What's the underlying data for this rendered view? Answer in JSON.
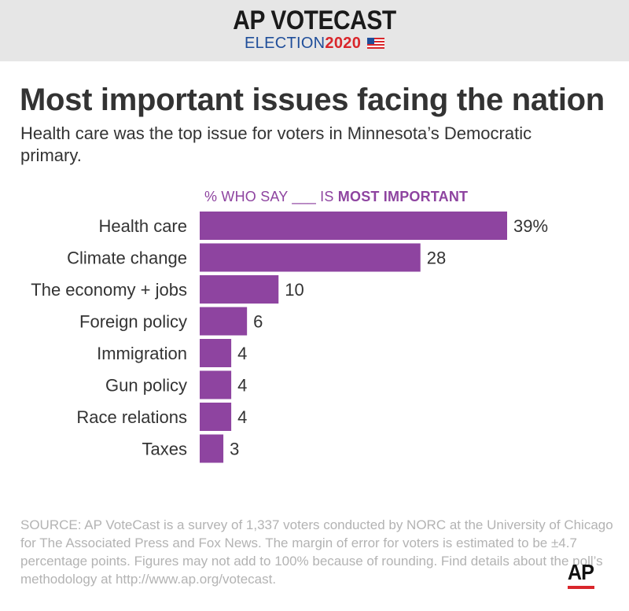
{
  "header": {
    "brand": "AP VOTECAST",
    "sub_left": "ELECTION",
    "sub_year": "2020",
    "flag_icon": "us-flag-icon"
  },
  "headline": "Most important issues facing the nation",
  "subhead": "Health care was the top issue for voters in Minnesota’s Democratic primary.",
  "chart_heading": {
    "prefix": "% WHO SAY ___ IS ",
    "emphasis": "MOST IMPORTANT"
  },
  "chart_data": {
    "type": "bar",
    "orientation": "horizontal",
    "categories": [
      "Health care",
      "Climate change",
      "The economy + jobs",
      "Foreign policy",
      "Immigration",
      "Gun policy",
      "Race relations",
      "Taxes"
    ],
    "values": [
      39,
      28,
      10,
      6,
      4,
      4,
      4,
      3
    ],
    "value_labels": [
      "39%",
      "28",
      "10",
      "6",
      "4",
      "4",
      "4",
      "3"
    ],
    "bar_color": "#8e44a0",
    "xlim": [
      0,
      39
    ]
  },
  "source": "SOURCE: AP VoteCast is a survey of 1,337 voters conducted by NORC at the University of Chicago for The Associated Press and Fox News. The margin of error for voters is estimated to be ±4.7 percentage points. Figures may not add to 100% because of rounding. Find details about the poll’s methodology at http://www.ap.org/votecast.",
  "logo": {
    "text": "AP",
    "accent": "#d9262b"
  },
  "colors": {
    "accent_blue": "#1f4e9a",
    "accent_red": "#d9262b",
    "banner_bg": "#e6e6e6"
  }
}
